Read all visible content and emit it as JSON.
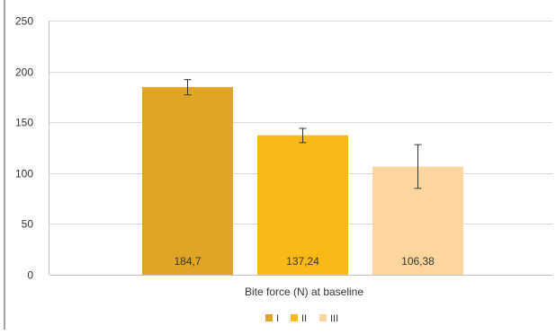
{
  "chart_data": {
    "type": "bar",
    "categories": [
      "Bite force (N) at baseline"
    ],
    "series": [
      {
        "name": "I",
        "color": "#E0A526",
        "value": 184.7,
        "error_low": 177,
        "error_high": 192,
        "data_label": "184,7"
      },
      {
        "name": "II",
        "color": "#FBB915",
        "value": 137.24,
        "error_low": 130,
        "error_high": 144,
        "data_label": "137,24"
      },
      {
        "name": "III",
        "color": "#FCD59F",
        "value": 106.38,
        "error_low": 85,
        "error_high": 128,
        "data_label": "106,38"
      }
    ],
    "ylim": [
      0,
      250
    ],
    "yticks": [
      "0",
      "50",
      "100",
      "150",
      "200",
      "250"
    ],
    "xlabel": "Bite force (N) at baseline",
    "grid": "horizontal",
    "legend": "bottom-center"
  }
}
